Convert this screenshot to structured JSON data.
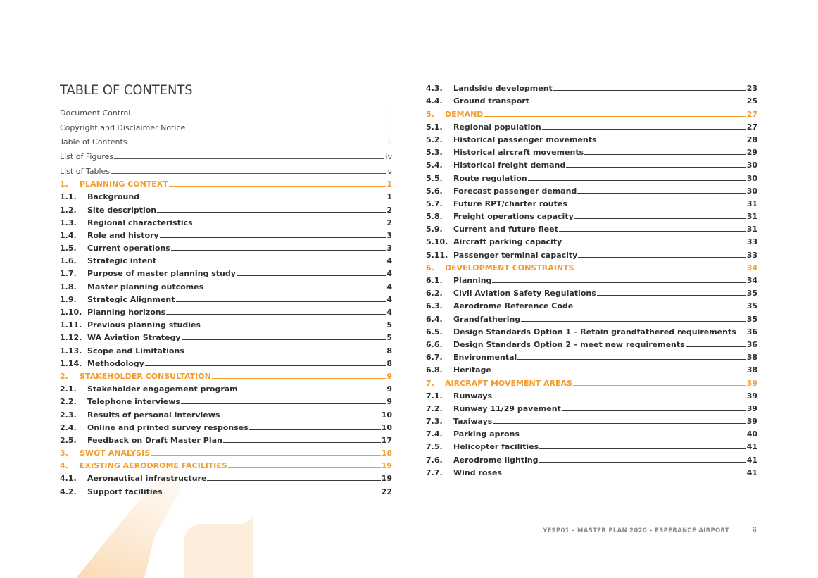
{
  "title": "TABLE OF CONTENTS",
  "front_matter": [
    {
      "label": "Document Control",
      "page": "i"
    },
    {
      "label": "Copyright and Disclaimer Notice",
      "page": "i"
    },
    {
      "label": "Table of Contents",
      "page": "ii"
    },
    {
      "label": "List of Figures",
      "page": "iv"
    },
    {
      "label": "List of Tables",
      "page": "v"
    }
  ],
  "left_entries": [
    {
      "type": "section",
      "num": "1.",
      "label": "PLANNING CONTEXT",
      "page": "1"
    },
    {
      "type": "sub",
      "num": "1.1.",
      "label": "Background",
      "page": "1"
    },
    {
      "type": "sub",
      "num": "1.2.",
      "label": "Site description",
      "page": "2"
    },
    {
      "type": "sub",
      "num": "1.3.",
      "label": "Regional characteristics",
      "page": "2"
    },
    {
      "type": "sub",
      "num": "1.4.",
      "label": "Role and history",
      "page": "3"
    },
    {
      "type": "sub",
      "num": "1.5.",
      "label": "Current operations",
      "page": "3"
    },
    {
      "type": "sub",
      "num": "1.6.",
      "label": "Strategic intent",
      "page": "4"
    },
    {
      "type": "sub",
      "num": "1.7.",
      "label": "Purpose of master planning study",
      "page": "4"
    },
    {
      "type": "sub",
      "num": "1.8.",
      "label": "Master planning outcomes",
      "page": "4"
    },
    {
      "type": "sub",
      "num": "1.9.",
      "label": "Strategic Alignment",
      "page": "4"
    },
    {
      "type": "sub",
      "num": "1.10.",
      "label": "Planning horizons",
      "page": "4"
    },
    {
      "type": "sub",
      "num": "1.11.",
      "label": "Previous planning studies",
      "page": "5"
    },
    {
      "type": "sub",
      "num": "1.12.",
      "label": "WA Aviation Strategy",
      "page": "5"
    },
    {
      "type": "sub",
      "num": "1.13.",
      "label": "Scope and Limitations",
      "page": "8"
    },
    {
      "type": "sub",
      "num": "1.14.",
      "label": "Methodology",
      "page": "8"
    },
    {
      "type": "section",
      "num": "2.",
      "label": "STAKEHOLDER CONSULTATION",
      "page": "9"
    },
    {
      "type": "sub",
      "num": "2.1.",
      "label": "Stakeholder engagement program",
      "page": "9"
    },
    {
      "type": "sub",
      "num": "2.2.",
      "label": "Telephone interviews",
      "page": "9"
    },
    {
      "type": "sub",
      "num": "2.3.",
      "label": "Results of personal interviews",
      "page": "10"
    },
    {
      "type": "sub",
      "num": "2.4.",
      "label": "Online and printed survey responses",
      "page": "10"
    },
    {
      "type": "sub",
      "num": "2.5.",
      "label": "Feedback on Draft Master Plan",
      "page": "17"
    },
    {
      "type": "section",
      "num": "3.",
      "label": "SWOT ANALYSIS",
      "page": "18"
    },
    {
      "type": "section",
      "num": "4.",
      "label": "EXISTING AERODROME FACILITIES",
      "page": "19"
    },
    {
      "type": "sub",
      "num": "4.1.",
      "label": "Aeronautical infrastructure",
      "page": "19"
    },
    {
      "type": "sub",
      "num": "4.2.",
      "label": "Support facilities",
      "page": "22"
    }
  ],
  "right_entries": [
    {
      "type": "sub",
      "num": "4.3.",
      "label": "Landside development",
      "page": "23"
    },
    {
      "type": "sub",
      "num": "4.4.",
      "label": "Ground transport",
      "page": "25"
    },
    {
      "type": "section",
      "num": "5.",
      "label": "DEMAND",
      "page": "27"
    },
    {
      "type": "sub",
      "num": "5.1.",
      "label": "Regional population",
      "page": "27"
    },
    {
      "type": "sub",
      "num": "5.2.",
      "label": "Historical passenger movements",
      "page": "28"
    },
    {
      "type": "sub",
      "num": "5.3.",
      "label": "Historical aircraft movements",
      "page": "29"
    },
    {
      "type": "sub",
      "num": "5.4.",
      "label": "Historical freight demand",
      "page": "30"
    },
    {
      "type": "sub",
      "num": "5.5.",
      "label": "Route regulation",
      "page": "30"
    },
    {
      "type": "sub",
      "num": "5.6.",
      "label": "Forecast passenger demand",
      "page": "30"
    },
    {
      "type": "sub",
      "num": "5.7.",
      "label": "Future RPT/charter routes",
      "page": "31"
    },
    {
      "type": "sub",
      "num": "5.8.",
      "label": "Freight operations capacity",
      "page": "31"
    },
    {
      "type": "sub",
      "num": "5.9.",
      "label": "Current and future fleet",
      "page": "31"
    },
    {
      "type": "sub",
      "num": "5.10.",
      "label": "Aircraft parking capacity",
      "page": "33"
    },
    {
      "type": "sub",
      "num": "5.11.",
      "label": "Passenger terminal capacity",
      "page": "33"
    },
    {
      "type": "section",
      "num": "6.",
      "label": "DEVELOPMENT CONSTRAINTS",
      "page": "34"
    },
    {
      "type": "sub",
      "num": "6.1.",
      "label": "Planning",
      "page": "34"
    },
    {
      "type": "sub",
      "num": "6.2.",
      "label": "Civil Aviation Safety Regulations",
      "page": "35"
    },
    {
      "type": "sub",
      "num": "6.3.",
      "label": "Aerodrome Reference Code",
      "page": "35"
    },
    {
      "type": "sub",
      "num": "6.4.",
      "label": "Grandfathering",
      "page": "35"
    },
    {
      "type": "sub",
      "num": "6.5.",
      "label": "Design Standards Option 1 – Retain grandfathered requirements",
      "page": "36"
    },
    {
      "type": "sub",
      "num": "6.6.",
      "label": "Design Standards Option 2 – meet new requirements",
      "page": "36"
    },
    {
      "type": "sub",
      "num": "6.7.",
      "label": "Environmental",
      "page": "38"
    },
    {
      "type": "sub",
      "num": "6.8.",
      "label": "Heritage",
      "page": "38"
    },
    {
      "type": "section",
      "num": "7.",
      "label": "AIRCRAFT MOVEMENT AREAS",
      "page": "39"
    },
    {
      "type": "sub",
      "num": "7.1.",
      "label": "Runways",
      "page": "39"
    },
    {
      "type": "sub",
      "num": "7.2.",
      "label": "Runway 11/29 pavement",
      "page": "39"
    },
    {
      "type": "sub",
      "num": "7.3.",
      "label": "Taxiways",
      "page": "39"
    },
    {
      "type": "sub",
      "num": "7.4.",
      "label": "Parking aprons",
      "page": "40"
    },
    {
      "type": "sub",
      "num": "7.5.",
      "label": "Helicopter facilities",
      "page": "41"
    },
    {
      "type": "sub",
      "num": "7.6.",
      "label": "Aerodrome lighting",
      "page": "41"
    },
    {
      "type": "sub",
      "num": "7.7.",
      "label": "Wind roses",
      "page": "41"
    }
  ],
  "footer": {
    "text": "YESP01 – MASTER PLAN 2020 – ESPERANCE AIRPORT",
    "page": "ii"
  },
  "colors": {
    "accent": "#f39c2c",
    "text": "#333333"
  }
}
